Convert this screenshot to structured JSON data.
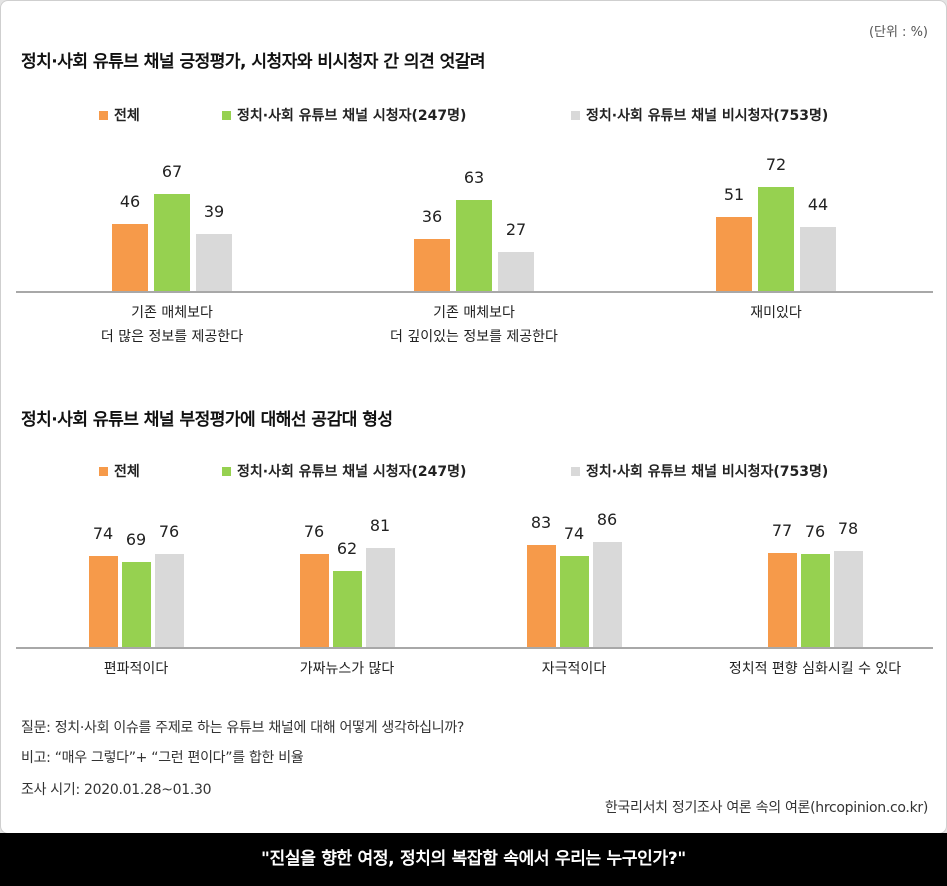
{
  "unit": "(단위 : %)",
  "colors": {
    "total": "#f69a4a",
    "viewer": "#96d150",
    "nonviewer": "#d9d9d9"
  },
  "chart_data": [
    {
      "type": "bar",
      "title": "정치·사회 유튜브 채널 긍정평가, 시청자와 비시청자 간 의견 엇갈려",
      "legend": [
        "전체",
        "정치·사회 유튜브 채널 시청자(247명)",
        "정치·사회 유튜브 채널 비시청자(753명)"
      ],
      "categories": [
        "기존 매체보다\n더 많은 정보를 제공한다",
        "기존 매체보다\n더 깊이있는 정보를 제공한다",
        "재미있다"
      ],
      "series": [
        {
          "name": "전체",
          "values": [
            46,
            36,
            51
          ]
        },
        {
          "name": "정치·사회 유튜브 채널 시청자(247명)",
          "values": [
            67,
            63,
            72
          ]
        },
        {
          "name": "정치·사회 유튜브 채널 비시청자(753명)",
          "values": [
            39,
            27,
            44
          ]
        }
      ],
      "ylim": [
        0,
        100
      ]
    },
    {
      "type": "bar",
      "title": "정치·사회 유튜브 채널 부정평가에 대해선 공감대 형성",
      "legend": [
        "전체",
        "정치·사회 유튜브 채널 시청자(247명)",
        "정치·사회 유튜브 채널 비시청자(753명)"
      ],
      "categories": [
        "편파적이다",
        "가짜뉴스가 많다",
        "자극적이다",
        "정치적 편향 심화시킬 수 있다"
      ],
      "series": [
        {
          "name": "전체",
          "values": [
            74,
            76,
            83,
            77
          ]
        },
        {
          "name": "정치·사회 유튜브 채널 시청자(247명)",
          "values": [
            69,
            62,
            74,
            76
          ]
        },
        {
          "name": "정치·사회 유튜브 채널 비시청자(753명)",
          "values": [
            76,
            81,
            86,
            78
          ]
        }
      ],
      "ylim": [
        0,
        100
      ]
    }
  ],
  "notes": {
    "question": "질문: 정치·사회 이슈를 주제로 하는 유튜브 채널에 대해 어떻게 생각하십니까?",
    "remark": "비고: “매우 그렇다”+ “그런 편이다”를 합한 비율",
    "period": "조사 시기: 2020.01.28~01.30"
  },
  "source": "한국리서치 정기조사 여론 속의 여론(hrcopinion.co.kr)",
  "footer_banner": "\"진실을 향한 여정, 정치의 복잡함 속에서 우리는 누구인가?\""
}
